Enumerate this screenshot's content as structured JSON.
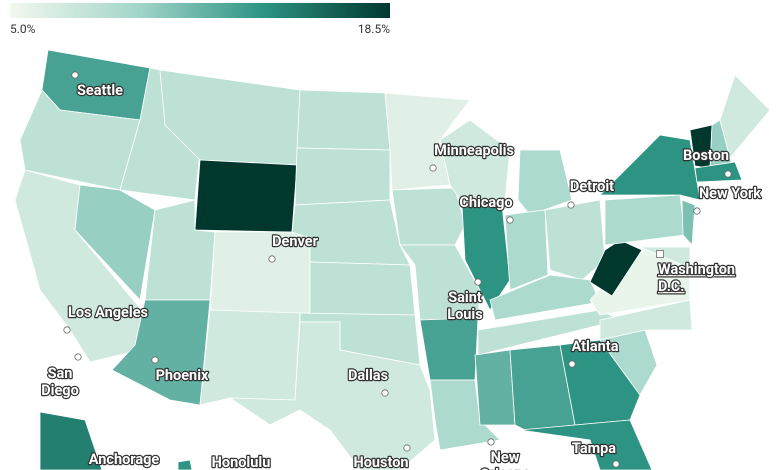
{
  "chart_data": {
    "type": "choropleth",
    "legend_ticks": [
      {
        "value": 5.0,
        "label": "5.0%"
      },
      {
        "value": 18.5,
        "label": "18.5%"
      }
    ],
    "colors": [
      "#f2f8ef",
      "#a4d6ca",
      "#2d9383",
      "#00382e"
    ],
    "values": [
      13,
      8,
      7,
      10,
      8,
      8,
      18.5,
      8,
      12,
      6,
      7,
      8,
      8,
      8,
      8,
      8,
      7,
      6,
      8,
      8,
      13,
      9,
      7,
      14,
      9,
      9,
      8,
      9,
      8,
      12,
      13,
      14,
      14,
      9,
      7,
      5.5,
      18.5,
      9,
      14,
      11,
      18.5,
      10,
      7,
      14,
      7,
      15,
      14
    ],
    "cities": [
      {
        "label": [
          "Seattle"
        ]
      },
      {
        "label": [
          "Minneapolis"
        ]
      },
      {
        "label": [
          "Boston"
        ]
      },
      {
        "label": [
          "New York"
        ]
      },
      {
        "label": [
          "Detroit"
        ]
      },
      {
        "label": [
          "Chicago"
        ]
      },
      {
        "label": [
          "Denver"
        ]
      },
      {
        "label": [
          "Washington",
          "D.C."
        ]
      },
      {
        "label": [
          "Saint",
          "Louis"
        ]
      },
      {
        "label": [
          "Los Angeles"
        ]
      },
      {
        "label": [
          "San",
          "Diego"
        ]
      },
      {
        "label": [
          "Phoenix"
        ]
      },
      {
        "label": [
          "Atlanta"
        ]
      },
      {
        "label": [
          "Dallas"
        ]
      },
      {
        "label": [
          "Houston"
        ]
      },
      {
        "label": [
          "New",
          "Orleans"
        ]
      },
      {
        "label": [
          "Tampa"
        ]
      },
      {
        "label": [
          "Anchorage"
        ]
      },
      {
        "label": [
          "Honolulu"
        ]
      }
    ]
  }
}
